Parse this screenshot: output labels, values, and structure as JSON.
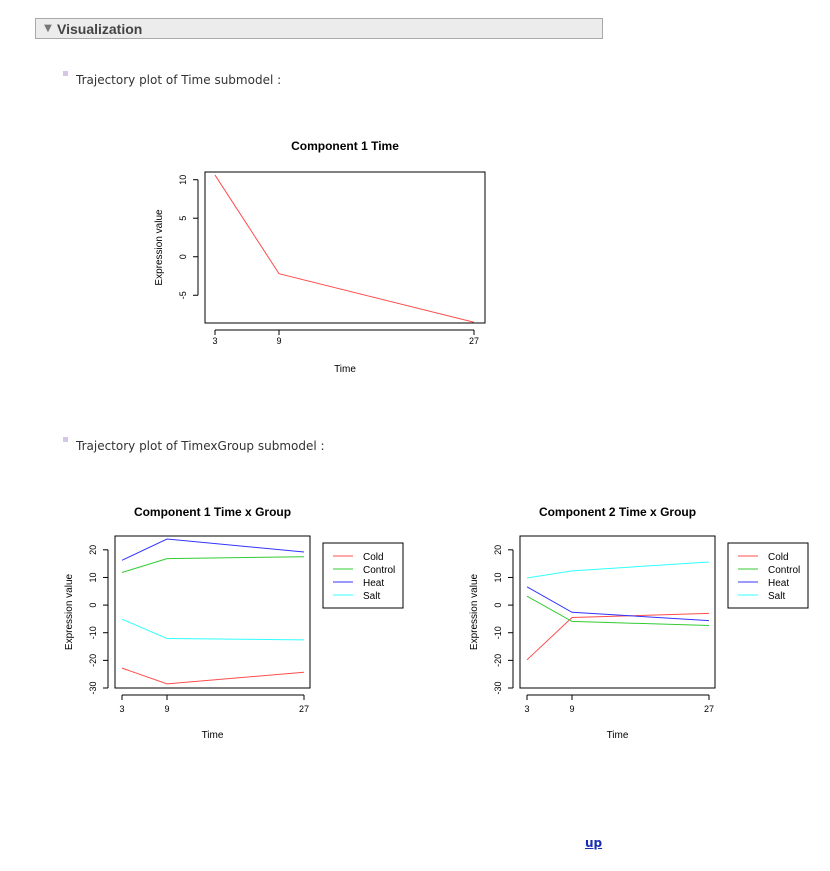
{
  "section": {
    "title": "Visualization",
    "toggle_icon": "collapse-triangle-icon"
  },
  "subheadings": {
    "time": "Trajectory plot of Time submodel :",
    "timexgroup": "Trajectory plot of TimexGroup submodel :"
  },
  "footer": {
    "up_label": "up"
  },
  "colors": {
    "Cold": "#ff4d4d",
    "Control": "#33cc33",
    "Heat": "#3333ff",
    "Salt": "#33ffff",
    "single": "#ff4d4d"
  },
  "chart_data": [
    {
      "type": "line",
      "title": "Component 1 Time",
      "xlabel": "Time",
      "ylabel": "Expression value",
      "x": [
        3,
        9,
        27
      ],
      "x_ticks": [
        "3",
        "9",
        "27"
      ],
      "y_ticks": [
        "10",
        "5",
        "0",
        "-5"
      ],
      "y_tick_values": [
        10,
        5,
        0,
        -5
      ],
      "ylim": [
        -8.6,
        11
      ],
      "series": [
        {
          "values": [
            10.6,
            -2.2,
            -8.5
          ]
        }
      ],
      "grid": false,
      "legend": "none"
    },
    {
      "type": "line",
      "title": "Component 1 Time x Group",
      "xlabel": "Time",
      "ylabel": "Expression value",
      "x": [
        3,
        9,
        27
      ],
      "x_ticks": [
        "3",
        "9",
        "27"
      ],
      "y_ticks": [
        "20",
        "10",
        "0",
        "-10",
        "-20",
        "-30"
      ],
      "y_tick_values": [
        20,
        10,
        0,
        -10,
        -20,
        -30
      ],
      "ylim": [
        -30,
        25
      ],
      "series": [
        {
          "name": "Cold",
          "values": [
            -22.8,
            -28.5,
            -24.3
          ]
        },
        {
          "name": "Control",
          "values": [
            11.8,
            16.8,
            17.5
          ]
        },
        {
          "name": "Heat",
          "values": [
            16.2,
            23.9,
            19.2
          ]
        },
        {
          "name": "Salt",
          "values": [
            -5.1,
            -12.1,
            -12.6
          ]
        }
      ],
      "grid": false,
      "legend": "right"
    },
    {
      "type": "line",
      "title": "Component 2 Time x Group",
      "xlabel": "Time",
      "ylabel": "Expression value",
      "x": [
        3,
        9,
        27
      ],
      "x_ticks": [
        "3",
        "9",
        "27"
      ],
      "y_ticks": [
        "20",
        "10",
        "0",
        "-10",
        "-20",
        "-30"
      ],
      "y_tick_values": [
        20,
        10,
        0,
        -10,
        -20,
        -30
      ],
      "ylim": [
        -30,
        25
      ],
      "series": [
        {
          "name": "Cold",
          "values": [
            -19.8,
            -4.5,
            -3.0
          ]
        },
        {
          "name": "Control",
          "values": [
            3.2,
            -5.9,
            -7.4
          ]
        },
        {
          "name": "Heat",
          "values": [
            6.6,
            -2.6,
            -5.6
          ]
        },
        {
          "name": "Salt",
          "values": [
            9.8,
            12.4,
            15.6
          ]
        }
      ],
      "grid": false,
      "legend": "right"
    }
  ]
}
